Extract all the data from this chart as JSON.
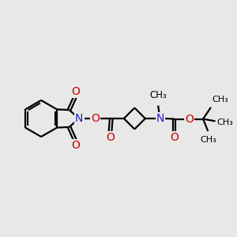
{
  "background_color": "#e8e8e8",
  "bond_color": "#000000",
  "n_color": "#2020cc",
  "o_color": "#cc0000",
  "font_size": 9.5,
  "figsize": [
    3.0,
    3.0
  ],
  "dpi": 100,
  "xlim": [
    0,
    10
  ],
  "ylim": [
    1,
    9
  ]
}
